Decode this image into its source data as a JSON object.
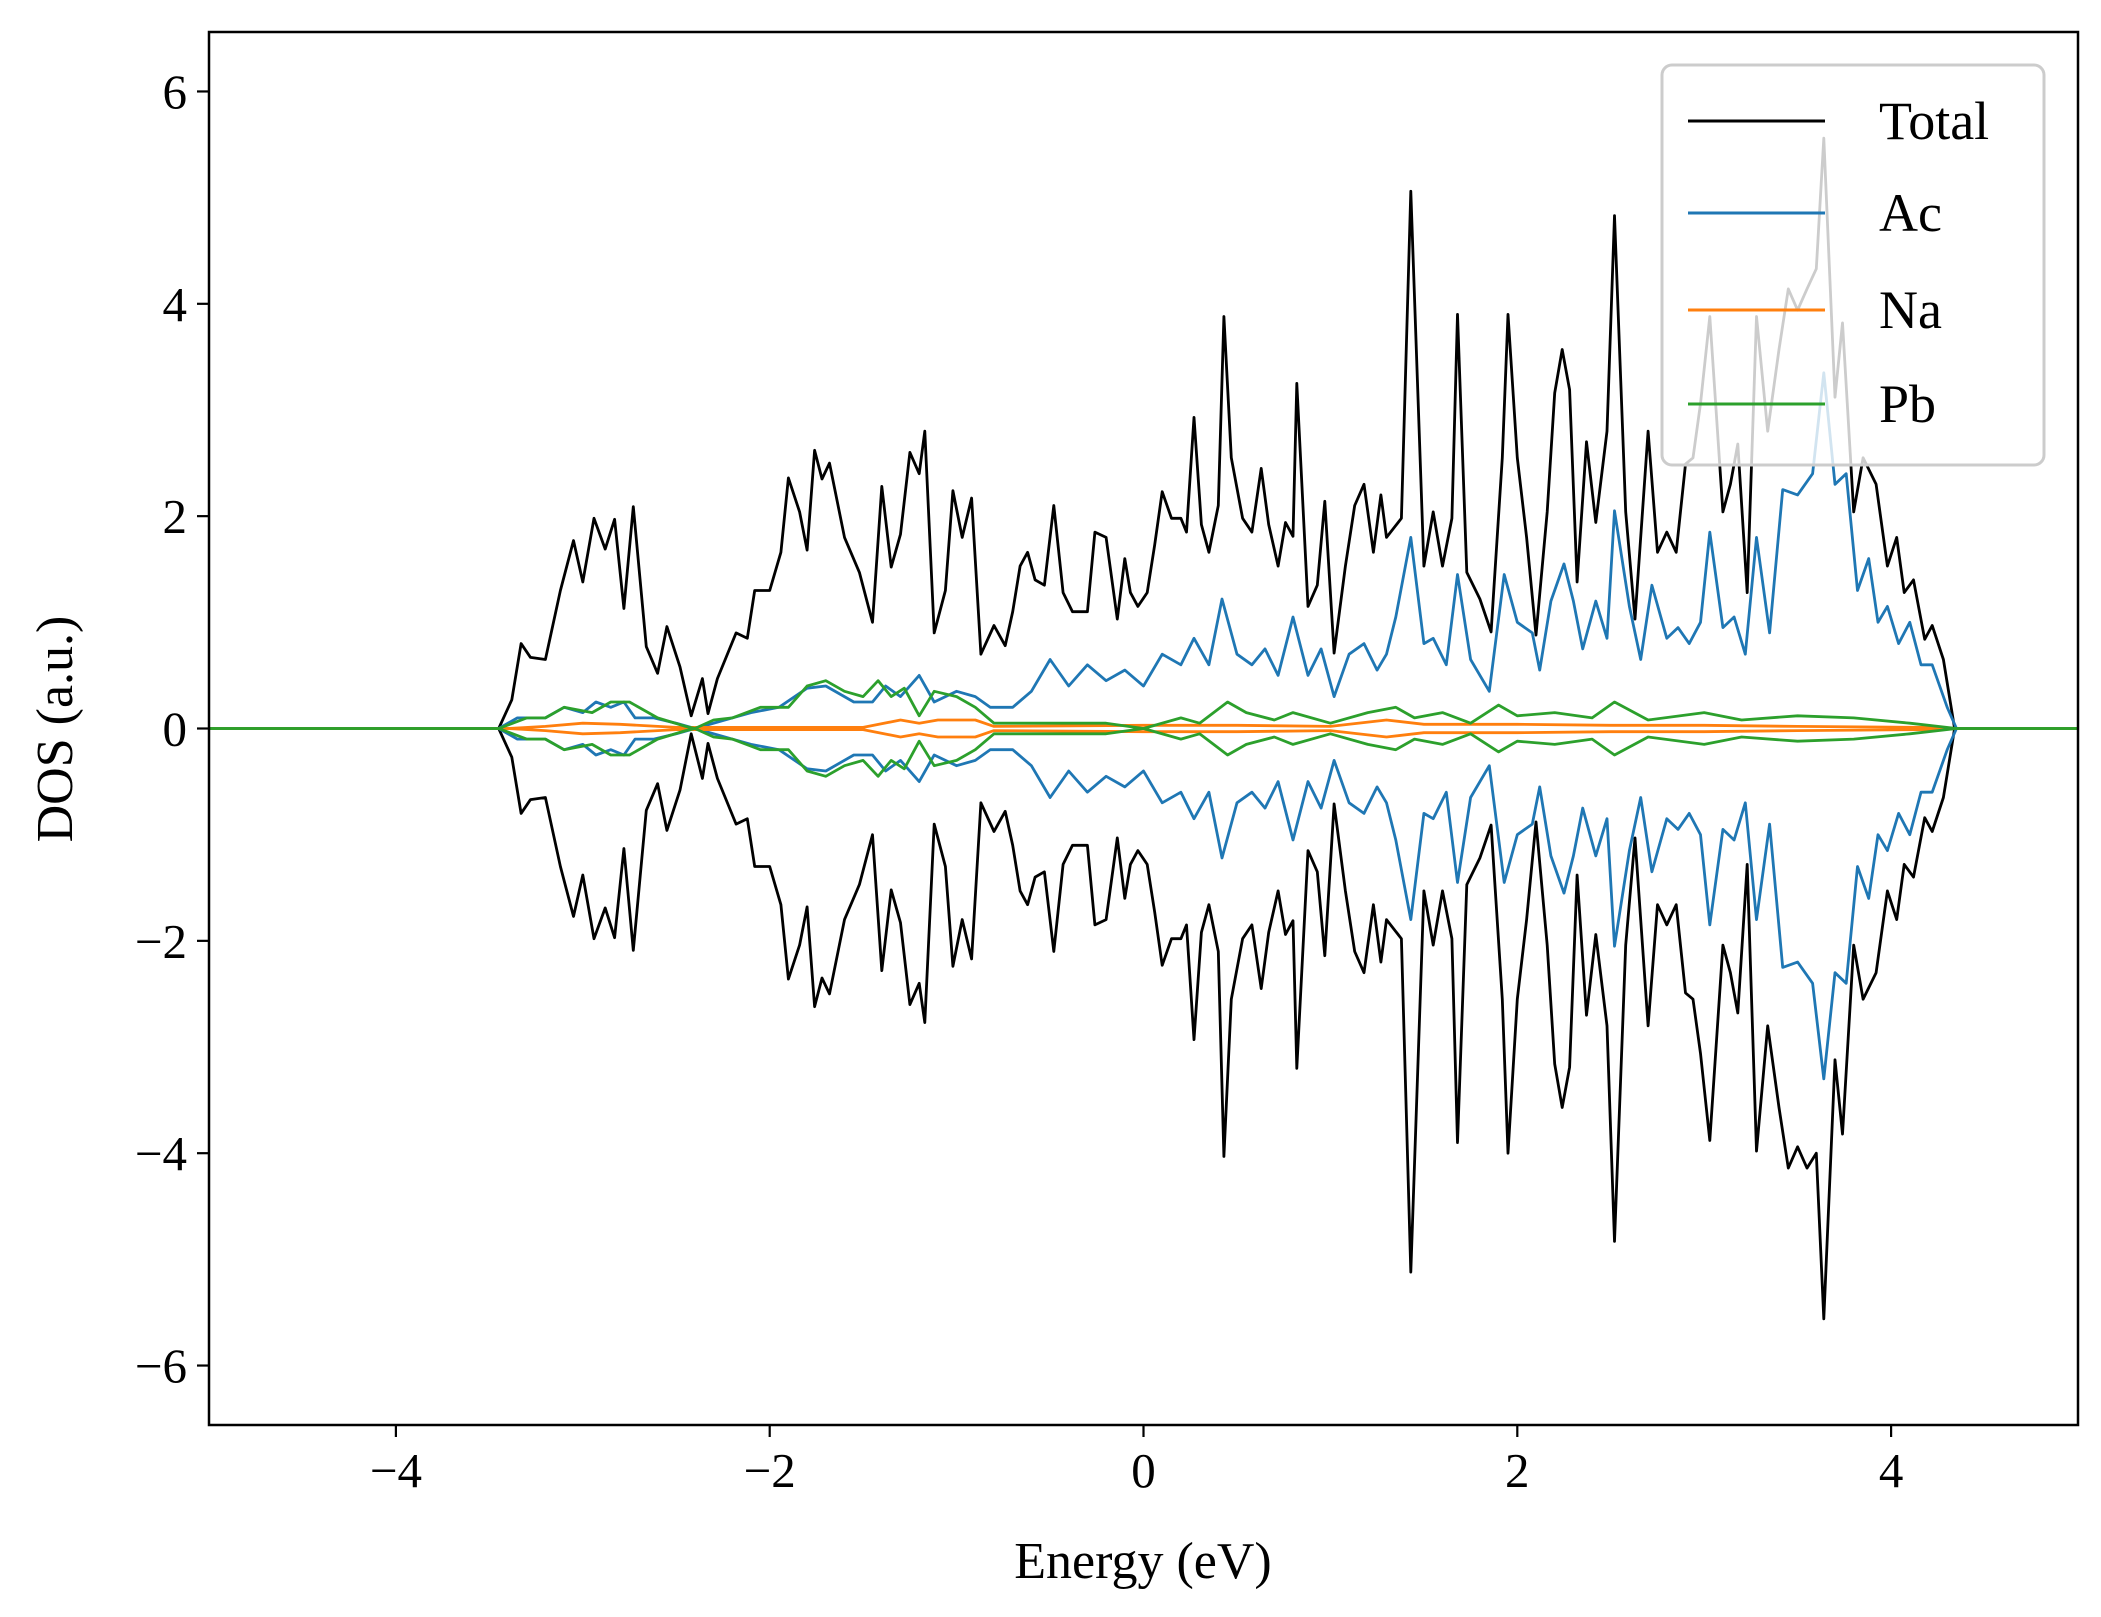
{
  "chart_data": {
    "type": "line",
    "title": "",
    "xlabel": "Energy (eV)",
    "ylabel": "DOS (a.u.)",
    "xlim": [
      -5,
      5
    ],
    "ylim": [
      -6.56,
      6.56
    ],
    "xticks": [
      -4,
      -2,
      0,
      2,
      4
    ],
    "xtick_labels": [
      "−4",
      "−2",
      "0",
      "2",
      "4"
    ],
    "yticks": [
      -6,
      -4,
      -2,
      0,
      2,
      4,
      6
    ],
    "ytick_labels": [
      "−6",
      "−4",
      "−2",
      "0",
      "2",
      "4",
      "6"
    ],
    "grid": false,
    "legend_position": "top-right",
    "series": [
      {
        "name": "Total",
        "color": "#000000",
        "x": [
          -5,
          -3.45,
          -3.38,
          -3.33,
          -3.28,
          -3.2,
          -3.12,
          -3.05,
          -3.0,
          -2.94,
          -2.88,
          -2.83,
          -2.78,
          -2.73,
          -2.66,
          -2.6,
          -2.55,
          -2.48,
          -2.42,
          -2.36,
          -2.33,
          -2.28,
          -2.18,
          -2.12,
          -2.08,
          -2.0,
          -1.94,
          -1.9,
          -1.84,
          -1.8,
          -1.76,
          -1.72,
          -1.68,
          -1.6,
          -1.52,
          -1.45,
          -1.4,
          -1.35,
          -1.3,
          -1.25,
          -1.2,
          -1.17,
          -1.12,
          -1.06,
          -1.02,
          -0.97,
          -0.92,
          -0.87,
          -0.8,
          -0.74,
          -0.7,
          -0.66,
          -0.62,
          -0.58,
          -0.53,
          -0.48,
          -0.43,
          -0.38,
          -0.3,
          -0.26,
          -0.2,
          -0.14,
          -0.1,
          -0.07,
          -0.03,
          0.02,
          0.06,
          0.1,
          0.15,
          0.2,
          0.23,
          0.27,
          0.31,
          0.35,
          0.4,
          0.43,
          0.47,
          0.53,
          0.58,
          0.63,
          0.67,
          0.72,
          0.76,
          0.8,
          0.82,
          0.88,
          0.93,
          0.97,
          1.02,
          1.08,
          1.13,
          1.18,
          1.23,
          1.27,
          1.3,
          1.38,
          1.43,
          1.5,
          1.55,
          1.6,
          1.65,
          1.68,
          1.73,
          1.8,
          1.86,
          1.92,
          1.95,
          2.0,
          2.05,
          2.1,
          2.16,
          2.2,
          2.24,
          2.28,
          2.32,
          2.37,
          2.42,
          2.48,
          2.52,
          2.58,
          2.63,
          2.7,
          2.75,
          2.8,
          2.85,
          2.9,
          2.94,
          2.98,
          3.03,
          3.1,
          3.14,
          3.18,
          3.23,
          3.28,
          3.34,
          3.4,
          3.45,
          3.5,
          3.55,
          3.6,
          3.64,
          3.7,
          3.74,
          3.8,
          3.85,
          3.92,
          3.98,
          4.03,
          4.07,
          4.12,
          4.18,
          4.22,
          4.28,
          4.34,
          5
        ],
        "up": [
          0,
          0,
          0.27,
          0.8,
          0.67,
          0.65,
          1.3,
          1.77,
          1.38,
          1.98,
          1.69,
          1.97,
          1.13,
          2.09,
          0.77,
          0.52,
          0.96,
          0.58,
          0.12,
          0.47,
          0.14,
          0.47,
          0.9,
          0.85,
          1.3,
          1.3,
          1.66,
          2.36,
          2.04,
          1.68,
          2.62,
          2.35,
          2.5,
          1.8,
          1.47,
          1.0,
          2.28,
          1.52,
          1.83,
          2.6,
          2.4,
          2.8,
          0.9,
          1.3,
          2.24,
          1.8,
          2.17,
          0.7,
          0.97,
          0.78,
          1.1,
          1.53,
          1.66,
          1.4,
          1.35,
          2.1,
          1.28,
          1.1,
          1.1,
          1.85,
          1.8,
          1.03,
          1.6,
          1.28,
          1.15,
          1.28,
          1.73,
          2.23,
          1.98,
          1.98,
          1.85,
          2.93,
          1.92,
          1.66,
          2.1,
          3.88,
          2.55,
          1.98,
          1.85,
          2.45,
          1.92,
          1.53,
          1.94,
          1.81,
          3.25,
          1.15,
          1.35,
          2.14,
          0.71,
          1.53,
          2.1,
          2.3,
          1.66,
          2.2,
          1.8,
          1.98,
          5.06,
          1.53,
          2.04,
          1.53,
          1.98,
          3.9,
          1.47,
          1.22,
          0.91,
          2.55,
          3.9,
          2.55,
          1.8,
          0.88,
          2.04,
          3.16,
          3.57,
          3.19,
          1.38,
          2.7,
          1.94,
          2.8,
          4.83,
          2.04,
          1.03,
          2.8,
          1.66,
          1.85,
          1.66,
          2.49,
          2.55,
          3.06,
          3.88,
          2.04,
          2.3,
          2.68,
          1.28,
          3.88,
          2.8,
          3.57,
          4.14,
          3.94,
          4.14,
          4.33,
          5.56,
          3.12,
          3.82,
          2.04,
          2.55,
          2.3,
          1.53,
          1.8,
          1.28,
          1.4,
          0.84,
          0.97,
          0.65,
          0,
          0
        ],
        "down": [
          0,
          0,
          -0.27,
          -0.8,
          -0.67,
          -0.65,
          -1.3,
          -1.77,
          -1.38,
          -1.98,
          -1.69,
          -1.97,
          -1.13,
          -2.09,
          -0.77,
          -0.52,
          -0.96,
          -0.58,
          -0.05,
          -0.47,
          -0.14,
          -0.47,
          -0.9,
          -0.85,
          -1.3,
          -1.3,
          -1.66,
          -2.36,
          -2.04,
          -1.68,
          -2.62,
          -2.35,
          -2.5,
          -1.8,
          -1.47,
          -1.0,
          -2.28,
          -1.52,
          -1.83,
          -2.6,
          -2.4,
          -2.77,
          -0.9,
          -1.3,
          -2.24,
          -1.8,
          -2.17,
          -0.7,
          -0.97,
          -0.78,
          -1.1,
          -1.53,
          -1.66,
          -1.4,
          -1.35,
          -2.1,
          -1.28,
          -1.1,
          -1.1,
          -1.85,
          -1.8,
          -1.03,
          -1.6,
          -1.28,
          -1.15,
          -1.28,
          -1.73,
          -2.23,
          -1.98,
          -1.98,
          -1.85,
          -2.93,
          -1.92,
          -1.66,
          -2.1,
          -4.03,
          -2.55,
          -1.98,
          -1.85,
          -2.45,
          -1.92,
          -1.53,
          -1.94,
          -1.81,
          -3.2,
          -1.15,
          -1.35,
          -2.14,
          -0.71,
          -1.53,
          -2.1,
          -2.3,
          -1.66,
          -2.2,
          -1.8,
          -1.98,
          -5.12,
          -1.53,
          -2.04,
          -1.53,
          -1.98,
          -3.9,
          -1.47,
          -1.22,
          -0.91,
          -2.55,
          -4.0,
          -2.55,
          -1.8,
          -0.88,
          -2.04,
          -3.16,
          -3.57,
          -3.19,
          -1.38,
          -2.7,
          -1.94,
          -2.8,
          -4.83,
          -2.04,
          -1.03,
          -2.8,
          -1.66,
          -1.85,
          -1.66,
          -2.49,
          -2.55,
          -3.06,
          -3.88,
          -2.04,
          -2.3,
          -2.68,
          -1.28,
          -3.98,
          -2.8,
          -3.57,
          -4.14,
          -3.94,
          -4.14,
          -4.0,
          -5.56,
          -3.12,
          -3.82,
          -2.04,
          -2.55,
          -2.3,
          -1.53,
          -1.8,
          -1.28,
          -1.4,
          -0.84,
          -0.97,
          -0.65,
          0,
          0
        ]
      },
      {
        "name": "Ac",
        "color": "#1f77b4",
        "x": [
          -5,
          -3.45,
          -3.35,
          -3.2,
          -3.1,
          -3.0,
          -2.93,
          -2.85,
          -2.78,
          -2.72,
          -2.62,
          -2.5,
          -2.4,
          -2.2,
          -2.1,
          -1.95,
          -1.8,
          -1.7,
          -1.55,
          -1.45,
          -1.38,
          -1.3,
          -1.2,
          -1.12,
          -1.0,
          -0.9,
          -0.82,
          -0.7,
          -0.6,
          -0.5,
          -0.4,
          -0.3,
          -0.2,
          -0.1,
          0,
          0.1,
          0.2,
          0.27,
          0.35,
          0.42,
          0.5,
          0.58,
          0.65,
          0.72,
          0.8,
          0.88,
          0.95,
          1.02,
          1.1,
          1.18,
          1.25,
          1.3,
          1.35,
          1.43,
          1.5,
          1.55,
          1.62,
          1.68,
          1.75,
          1.85,
          1.93,
          2.0,
          2.08,
          2.12,
          2.18,
          2.25,
          2.3,
          2.35,
          2.42,
          2.48,
          2.52,
          2.6,
          2.66,
          2.72,
          2.8,
          2.86,
          2.92,
          2.98,
          3.03,
          3.1,
          3.16,
          3.22,
          3.28,
          3.35,
          3.42,
          3.5,
          3.58,
          3.64,
          3.7,
          3.76,
          3.82,
          3.88,
          3.93,
          3.98,
          4.04,
          4.1,
          4.16,
          4.22,
          4.3,
          4.35,
          5
        ],
        "up": [
          0,
          0,
          0.1,
          0.1,
          0.2,
          0.15,
          0.25,
          0.2,
          0.25,
          0.1,
          0.1,
          0.05,
          0,
          0.1,
          0.15,
          0.2,
          0.38,
          0.4,
          0.25,
          0.25,
          0.4,
          0.3,
          0.5,
          0.25,
          0.35,
          0.3,
          0.2,
          0.2,
          0.35,
          0.65,
          0.4,
          0.6,
          0.45,
          0.55,
          0.4,
          0.7,
          0.6,
          0.85,
          0.6,
          1.22,
          0.7,
          0.6,
          0.75,
          0.5,
          1.05,
          0.5,
          0.75,
          0.3,
          0.7,
          0.8,
          0.55,
          0.7,
          1.05,
          1.8,
          0.8,
          0.85,
          0.6,
          1.45,
          0.65,
          0.35,
          1.45,
          1.0,
          0.9,
          0.55,
          1.2,
          1.55,
          1.2,
          0.75,
          1.2,
          0.85,
          2.05,
          1.15,
          0.65,
          1.35,
          0.85,
          0.95,
          0.8,
          1.0,
          1.85,
          0.95,
          1.05,
          0.7,
          1.8,
          0.9,
          2.25,
          2.2,
          2.4,
          3.35,
          2.3,
          2.4,
          1.3,
          1.6,
          1.0,
          1.15,
          0.8,
          1.0,
          0.6,
          0.6,
          0.2,
          0,
          0
        ],
        "down": [
          0,
          0,
          -0.1,
          -0.1,
          -0.2,
          -0.15,
          -0.25,
          -0.2,
          -0.25,
          -0.1,
          -0.1,
          -0.05,
          0,
          -0.1,
          -0.15,
          -0.2,
          -0.38,
          -0.4,
          -0.25,
          -0.25,
          -0.4,
          -0.3,
          -0.5,
          -0.25,
          -0.35,
          -0.3,
          -0.2,
          -0.2,
          -0.35,
          -0.65,
          -0.4,
          -0.6,
          -0.45,
          -0.55,
          -0.4,
          -0.7,
          -0.6,
          -0.85,
          -0.6,
          -1.22,
          -0.7,
          -0.6,
          -0.75,
          -0.5,
          -1.05,
          -0.5,
          -0.75,
          -0.3,
          -0.7,
          -0.8,
          -0.55,
          -0.7,
          -1.05,
          -1.8,
          -0.8,
          -0.85,
          -0.6,
          -1.45,
          -0.65,
          -0.35,
          -1.45,
          -1.0,
          -0.9,
          -0.55,
          -1.2,
          -1.55,
          -1.2,
          -0.75,
          -1.2,
          -0.85,
          -2.05,
          -1.15,
          -0.65,
          -1.35,
          -0.85,
          -0.95,
          -0.8,
          -1.0,
          -1.85,
          -0.95,
          -1.05,
          -0.7,
          -1.8,
          -0.9,
          -2.25,
          -2.2,
          -2.4,
          -3.3,
          -2.3,
          -2.4,
          -1.3,
          -1.6,
          -1.0,
          -1.15,
          -0.8,
          -1.0,
          -0.6,
          -0.6,
          -0.2,
          0,
          0
        ]
      },
      {
        "name": "Na",
        "color": "#ff7f0e",
        "x": [
          -5,
          -3.4,
          -3.2,
          -3.0,
          -2.8,
          -2.5,
          -2.0,
          -1.5,
          -1.3,
          -1.2,
          -1.1,
          -0.9,
          -0.8,
          0,
          0.5,
          1.0,
          1.3,
          1.5,
          2.0,
          2.5,
          3.0,
          3.5,
          4.2,
          4.35,
          5
        ],
        "up": [
          0,
          0,
          0.02,
          0.05,
          0.04,
          0.01,
          0.01,
          0.01,
          0.08,
          0.05,
          0.08,
          0.08,
          0.02,
          0.03,
          0.03,
          0.02,
          0.08,
          0.04,
          0.04,
          0.03,
          0.03,
          0.02,
          0.01,
          0,
          0
        ],
        "down": [
          0,
          0,
          -0.02,
          -0.05,
          -0.04,
          -0.01,
          -0.01,
          -0.01,
          -0.08,
          -0.05,
          -0.08,
          -0.08,
          -0.02,
          -0.03,
          -0.03,
          -0.02,
          -0.08,
          -0.04,
          -0.04,
          -0.03,
          -0.03,
          -0.02,
          -0.01,
          0,
          0
        ]
      },
      {
        "name": "Pb",
        "color": "#2ca02c",
        "x": [
          -5,
          -3.45,
          -3.3,
          -3.2,
          -3.1,
          -2.95,
          -2.85,
          -2.75,
          -2.6,
          -2.45,
          -2.4,
          -2.3,
          -2.2,
          -2.05,
          -1.9,
          -1.8,
          -1.7,
          -1.6,
          -1.5,
          -1.42,
          -1.35,
          -1.28,
          -1.2,
          -1.12,
          -1.0,
          -0.9,
          -0.8,
          -0.6,
          -0.4,
          -0.2,
          0,
          0.2,
          0.3,
          0.45,
          0.55,
          0.7,
          0.8,
          1.0,
          1.2,
          1.35,
          1.45,
          1.6,
          1.75,
          1.9,
          2.0,
          2.2,
          2.4,
          2.52,
          2.7,
          3.0,
          3.2,
          3.5,
          3.8,
          4.1,
          4.35,
          5
        ],
        "up": [
          0,
          0,
          0.1,
          0.1,
          0.2,
          0.15,
          0.25,
          0.25,
          0.1,
          0.02,
          0,
          0.08,
          0.1,
          0.2,
          0.2,
          0.4,
          0.45,
          0.35,
          0.3,
          0.45,
          0.3,
          0.38,
          0.12,
          0.35,
          0.3,
          0.2,
          0.05,
          0.05,
          0.05,
          0.05,
          0,
          0.1,
          0.05,
          0.25,
          0.15,
          0.08,
          0.15,
          0.05,
          0.15,
          0.2,
          0.1,
          0.15,
          0.05,
          0.22,
          0.12,
          0.15,
          0.1,
          0.25,
          0.08,
          0.15,
          0.08,
          0.12,
          0.1,
          0.05,
          0,
          0
        ],
        "down": [
          0,
          0,
          -0.1,
          -0.1,
          -0.2,
          -0.15,
          -0.25,
          -0.25,
          -0.1,
          -0.02,
          0,
          -0.08,
          -0.1,
          -0.2,
          -0.2,
          -0.4,
          -0.45,
          -0.35,
          -0.3,
          -0.45,
          -0.3,
          -0.38,
          -0.12,
          -0.35,
          -0.3,
          -0.2,
          -0.05,
          -0.05,
          -0.05,
          -0.05,
          0,
          -0.1,
          -0.05,
          -0.25,
          -0.15,
          -0.08,
          -0.15,
          -0.05,
          -0.15,
          -0.2,
          -0.1,
          -0.15,
          -0.05,
          -0.22,
          -0.12,
          -0.15,
          -0.1,
          -0.25,
          -0.08,
          -0.15,
          -0.08,
          -0.12,
          -0.1,
          -0.05,
          0,
          0
        ]
      }
    ]
  }
}
